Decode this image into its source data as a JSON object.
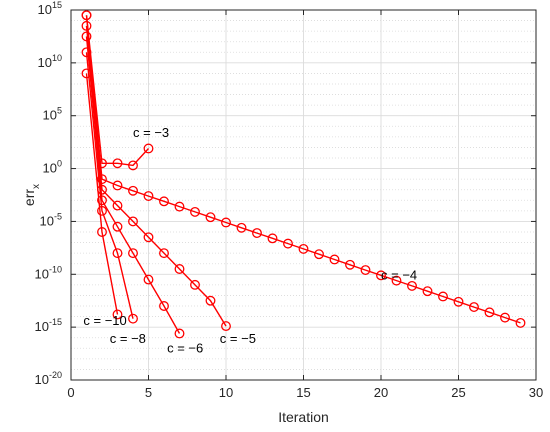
{
  "chart_data": {
    "type": "line",
    "xlabel": "Iteration",
    "ylabel": "err",
    "ylabel_subscript": "x",
    "xlim": [
      0,
      30
    ],
    "ylim_log10": [
      -20,
      15
    ],
    "yscale": "log",
    "grid": "on",
    "minor_grid": "on",
    "x_ticks": [
      0,
      5,
      10,
      15,
      20,
      25,
      30
    ],
    "y_ticks_log10": [
      -20,
      -15,
      -10,
      -5,
      0,
      5,
      10,
      15
    ],
    "y_tick_base": "10",
    "color": "#ff0000",
    "marker": "circle",
    "series": [
      {
        "x": [
          1,
          2,
          3,
          4,
          5
        ],
        "log10_y": [
          14.5,
          0.5,
          0.5,
          0.3,
          1.9
        ]
      },
      {
        "x": [
          1,
          2,
          3,
          4,
          5,
          6,
          7,
          8,
          9,
          10,
          11,
          12,
          13,
          14,
          15,
          16,
          17,
          18,
          19,
          20,
          21,
          22,
          23,
          24,
          25,
          26,
          27,
          28,
          29
        ],
        "log10_y": [
          14.5,
          -1.0,
          -1.6,
          -2.1,
          -2.6,
          -3.1,
          -3.6,
          -4.1,
          -4.6,
          -5.1,
          -5.6,
          -6.1,
          -6.6,
          -7.1,
          -7.6,
          -8.1,
          -8.6,
          -9.1,
          -9.6,
          -10.1,
          -10.6,
          -11.1,
          -11.6,
          -12.1,
          -12.6,
          -13.1,
          -13.6,
          -14.1,
          -14.6
        ]
      },
      {
        "x": [
          1,
          2,
          3,
          4,
          5,
          6,
          7,
          8,
          9,
          10
        ],
        "log10_y": [
          13.5,
          -2.0,
          -3.5,
          -5.0,
          -6.5,
          -8.0,
          -9.5,
          -11.0,
          -12.5,
          -14.9
        ]
      },
      {
        "x": [
          1,
          2,
          3,
          4,
          5,
          6,
          7
        ],
        "log10_y": [
          12.5,
          -3.0,
          -5.5,
          -8.0,
          -10.5,
          -13.0,
          -15.6
        ]
      },
      {
        "x": [
          1,
          2,
          3,
          4
        ],
        "log10_y": [
          11.0,
          -4.0,
          -8.0,
          -14.2
        ]
      },
      {
        "x": [
          1,
          2,
          3
        ],
        "log10_y": [
          9.0,
          -6.0,
          -13.8
        ]
      }
    ],
    "annotations": [
      {
        "text": "c = −3",
        "x": 4.0,
        "log10_y": 3.0
      },
      {
        "text": "c = −4",
        "x": 20.0,
        "log10_y": -10.5
      },
      {
        "text": "c = −5",
        "x": 9.6,
        "log10_y": -16.5
      },
      {
        "text": "c = −6",
        "x": 6.2,
        "log10_y": -17.4
      },
      {
        "text": "c = −8",
        "x": 2.5,
        "log10_y": -16.5
      },
      {
        "text": "c = −10",
        "x": 0.8,
        "log10_y": -14.8
      }
    ]
  }
}
